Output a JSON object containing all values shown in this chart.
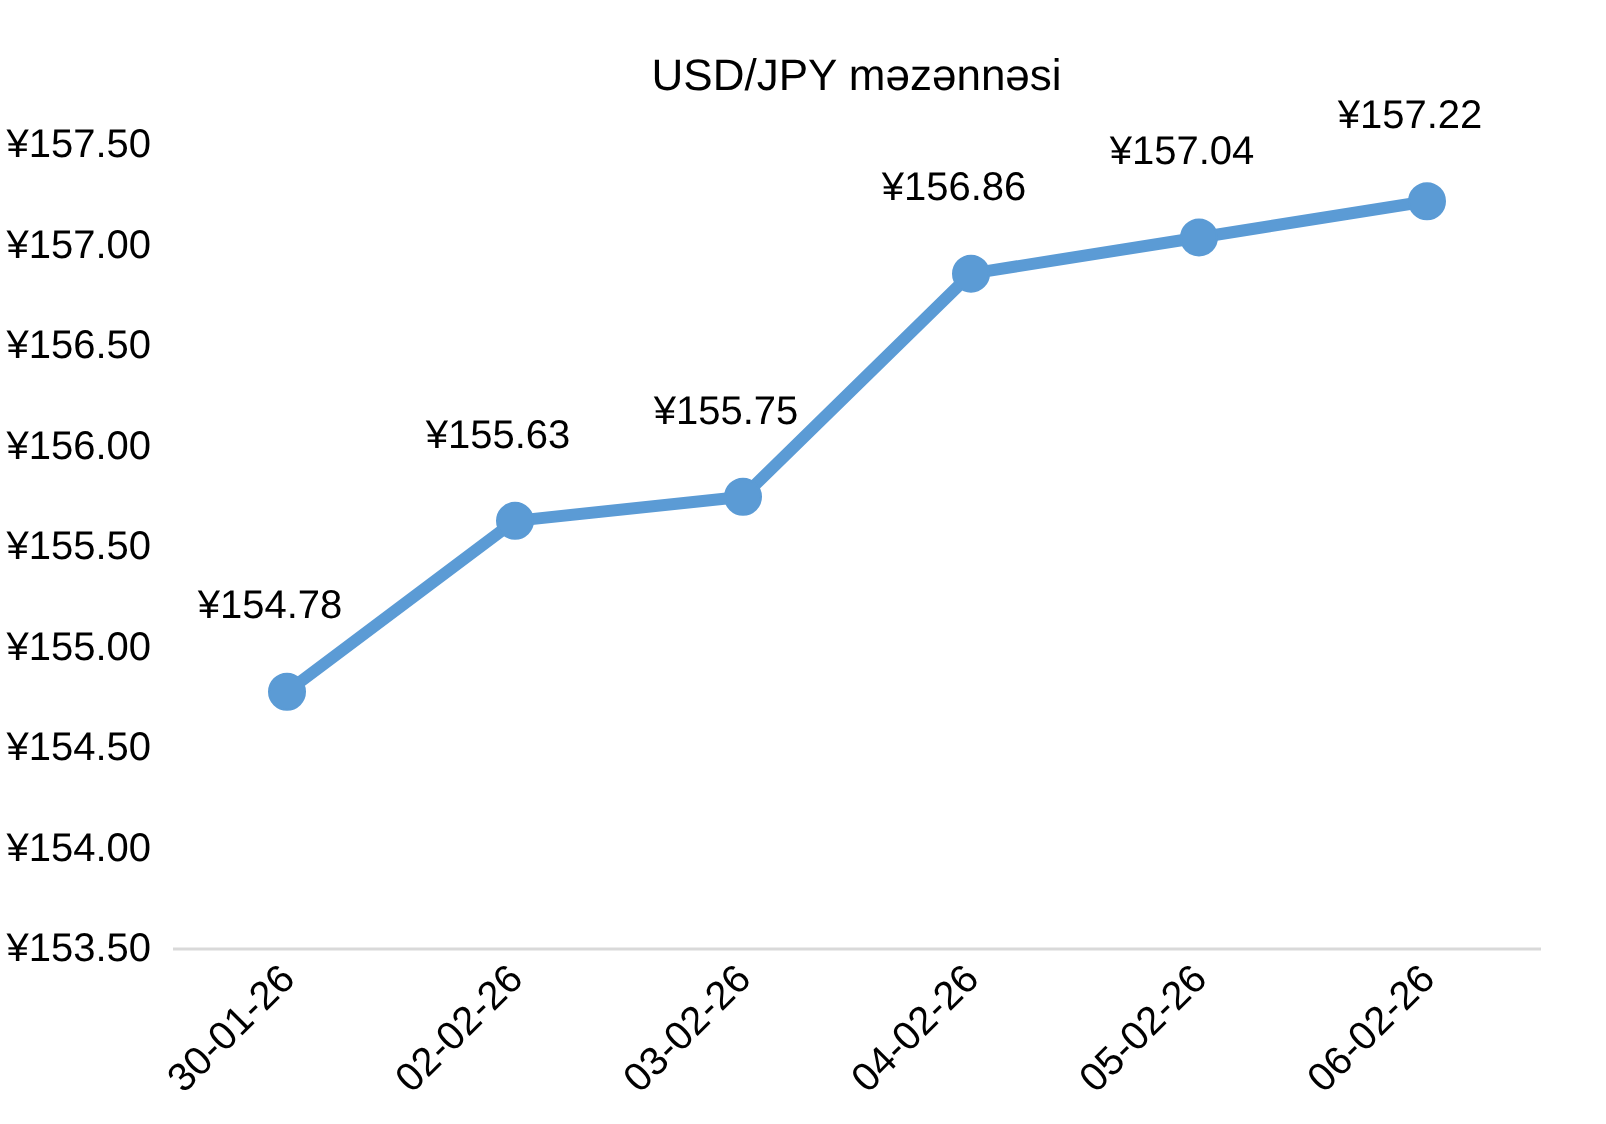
{
  "chart_data": {
    "type": "line",
    "title": "USD/JPY məzənnəsi",
    "categories": [
      "30-01-26",
      "02-02-26",
      "03-02-26",
      "04-02-26",
      "05-02-26",
      "06-02-26"
    ],
    "series": [
      {
        "color": "#5b9bd5",
        "values": [
          154.78,
          155.63,
          155.75,
          156.86,
          157.04,
          157.22
        ],
        "value_labels": [
          "¥154.78",
          "¥155.63",
          "¥155.75",
          "¥156.86",
          "¥157.04",
          "¥157.22"
        ]
      }
    ],
    "ylim": [
      153.5,
      157.5
    ],
    "yticks": [
      {
        "value": 153.5,
        "label": "¥153.50"
      },
      {
        "value": 154.0,
        "label": "¥154.00"
      },
      {
        "value": 154.5,
        "label": "¥154.50"
      },
      {
        "value": 155.0,
        "label": "¥155.00"
      },
      {
        "value": 155.5,
        "label": "¥155.50"
      },
      {
        "value": 156.0,
        "label": "¥156.00"
      },
      {
        "value": 156.5,
        "label": "¥156.50"
      },
      {
        "value": 157.0,
        "label": "¥157.00"
      },
      {
        "value": 157.5,
        "label": "¥157.50"
      }
    ],
    "grid": false,
    "marker": "circle",
    "line_style": "solid"
  }
}
